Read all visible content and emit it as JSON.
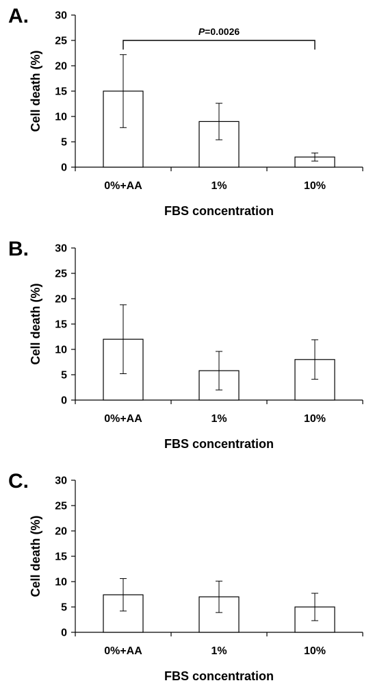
{
  "chart_data": [
    {
      "type": "bar",
      "panel_label": "A.",
      "categories": [
        "0%+AA",
        "1%",
        "10%"
      ],
      "values": [
        15,
        9,
        2
      ],
      "error": [
        7.2,
        3.6,
        0.8
      ],
      "xlabel": "FBS concentration",
      "ylabel": "Cell death (%)",
      "ylim": [
        0,
        30
      ],
      "yticks": [
        0,
        5,
        10,
        15,
        20,
        25,
        30
      ],
      "grid": false,
      "bar_fill": "#ffffff",
      "bar_stroke": "#000000",
      "annotation": {
        "p_label": "P",
        "p_value": "=0.0026",
        "from": "0%+AA",
        "to": "10%"
      }
    },
    {
      "type": "bar",
      "panel_label": "B.",
      "categories": [
        "0%+AA",
        "1%",
        "10%"
      ],
      "values": [
        12,
        5.8,
        8
      ],
      "error": [
        6.8,
        3.8,
        3.9
      ],
      "xlabel": "FBS concentration",
      "ylabel": "Cell death (%)",
      "ylim": [
        0,
        30
      ],
      "yticks": [
        0,
        5,
        10,
        15,
        20,
        25,
        30
      ],
      "grid": false,
      "bar_fill": "#ffffff",
      "bar_stroke": "#000000"
    },
    {
      "type": "bar",
      "panel_label": "C.",
      "categories": [
        "0%+AA",
        "1%",
        "10%"
      ],
      "values": [
        7.4,
        7,
        5
      ],
      "error": [
        3.2,
        3.1,
        2.7
      ],
      "xlabel": "FBS concentration",
      "ylabel": "Cell death (%)",
      "ylim": [
        0,
        30
      ],
      "yticks": [
        0,
        5,
        10,
        15,
        20,
        25,
        30
      ],
      "grid": false,
      "bar_fill": "#ffffff",
      "bar_stroke": "#000000"
    }
  ]
}
